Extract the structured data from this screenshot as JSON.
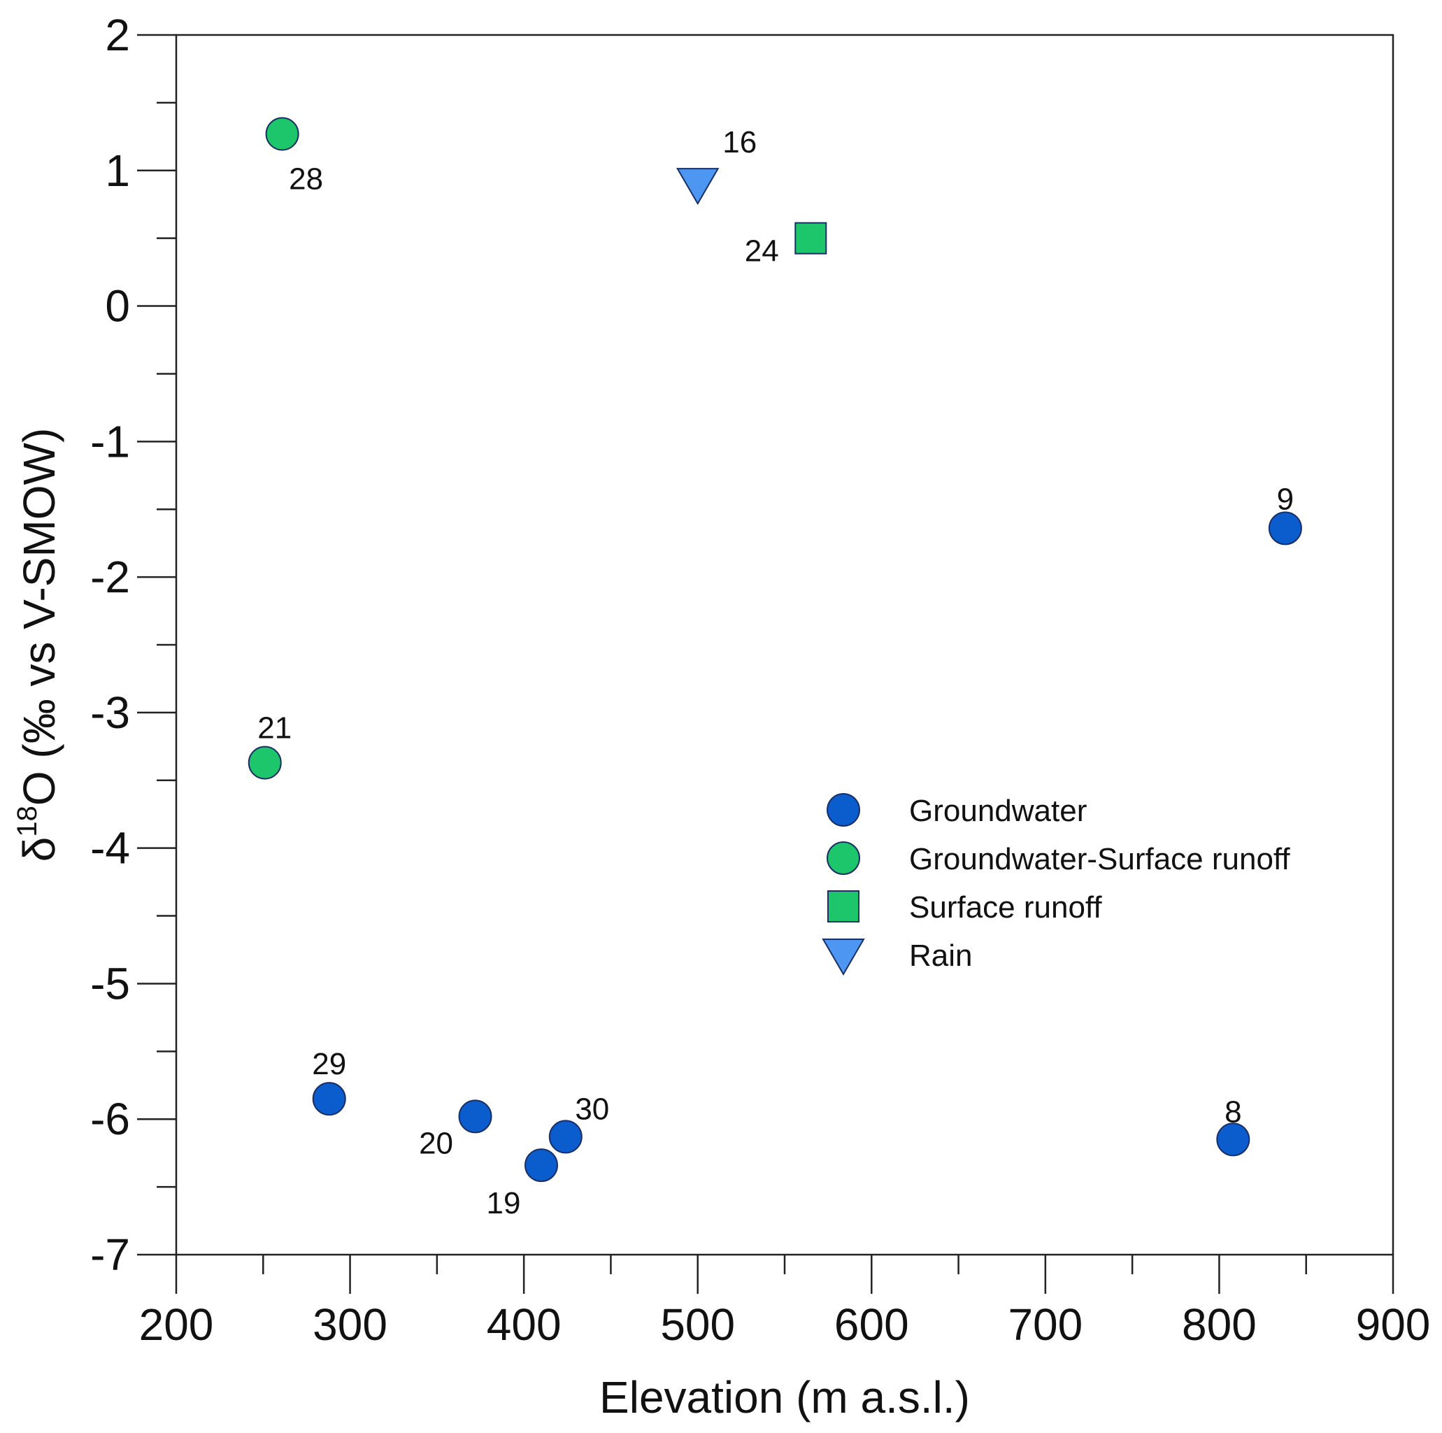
{
  "chart_data": {
    "type": "scatter",
    "title": "",
    "xlabel": "Elevation (m a.s.l.)",
    "ylabel": {
      "delta": "δ",
      "superscript": "18",
      "rest": "O (‰ vs V-SMOW)"
    },
    "xlim": [
      200,
      900
    ],
    "ylim": [
      -7,
      2
    ],
    "x_major_ticks": [
      200,
      300,
      400,
      500,
      600,
      700,
      800,
      900
    ],
    "x_tick_labels": [
      "200",
      "300",
      "400",
      "500",
      "600",
      "700",
      "800",
      "900"
    ],
    "y_major_ticks": [
      2,
      1,
      0,
      -1,
      -2,
      -3,
      -4,
      -5,
      -6,
      -7
    ],
    "y_tick_labels": [
      "2",
      "1",
      "0",
      "-1",
      "-2",
      "-3",
      "-4",
      "-5",
      "-6",
      "-7"
    ],
    "grid": false,
    "legend_position": "center-right",
    "series": [
      {
        "name": "Groundwater",
        "marker": "circle",
        "color": "#0b5ccc",
        "points": [
          {
            "id": "29",
            "x": 288,
            "y": -5.85
          },
          {
            "id": "20",
            "x": 372,
            "y": -5.98
          },
          {
            "id": "19",
            "x": 410,
            "y": -6.34
          },
          {
            "id": "30",
            "x": 424,
            "y": -6.13
          },
          {
            "id": "8",
            "x": 808,
            "y": -6.15
          },
          {
            "id": "9",
            "x": 838,
            "y": -1.64
          }
        ]
      },
      {
        "name": "Groundwater-Surface runoff",
        "marker": "circle",
        "color": "#1dc66a",
        "points": [
          {
            "id": "28",
            "x": 261,
            "y": 1.27
          },
          {
            "id": "21",
            "x": 251,
            "y": -3.37
          }
        ]
      },
      {
        "name": "Surface runoff",
        "marker": "square",
        "color": "#1dc66a",
        "points": [
          {
            "id": "24",
            "x": 565,
            "y": 0.5
          }
        ]
      },
      {
        "name": "Rain",
        "marker": "triangle-down",
        "color": "#4d97f3",
        "points": [
          {
            "id": "16",
            "x": 500,
            "y": 0.9
          }
        ]
      }
    ]
  }
}
